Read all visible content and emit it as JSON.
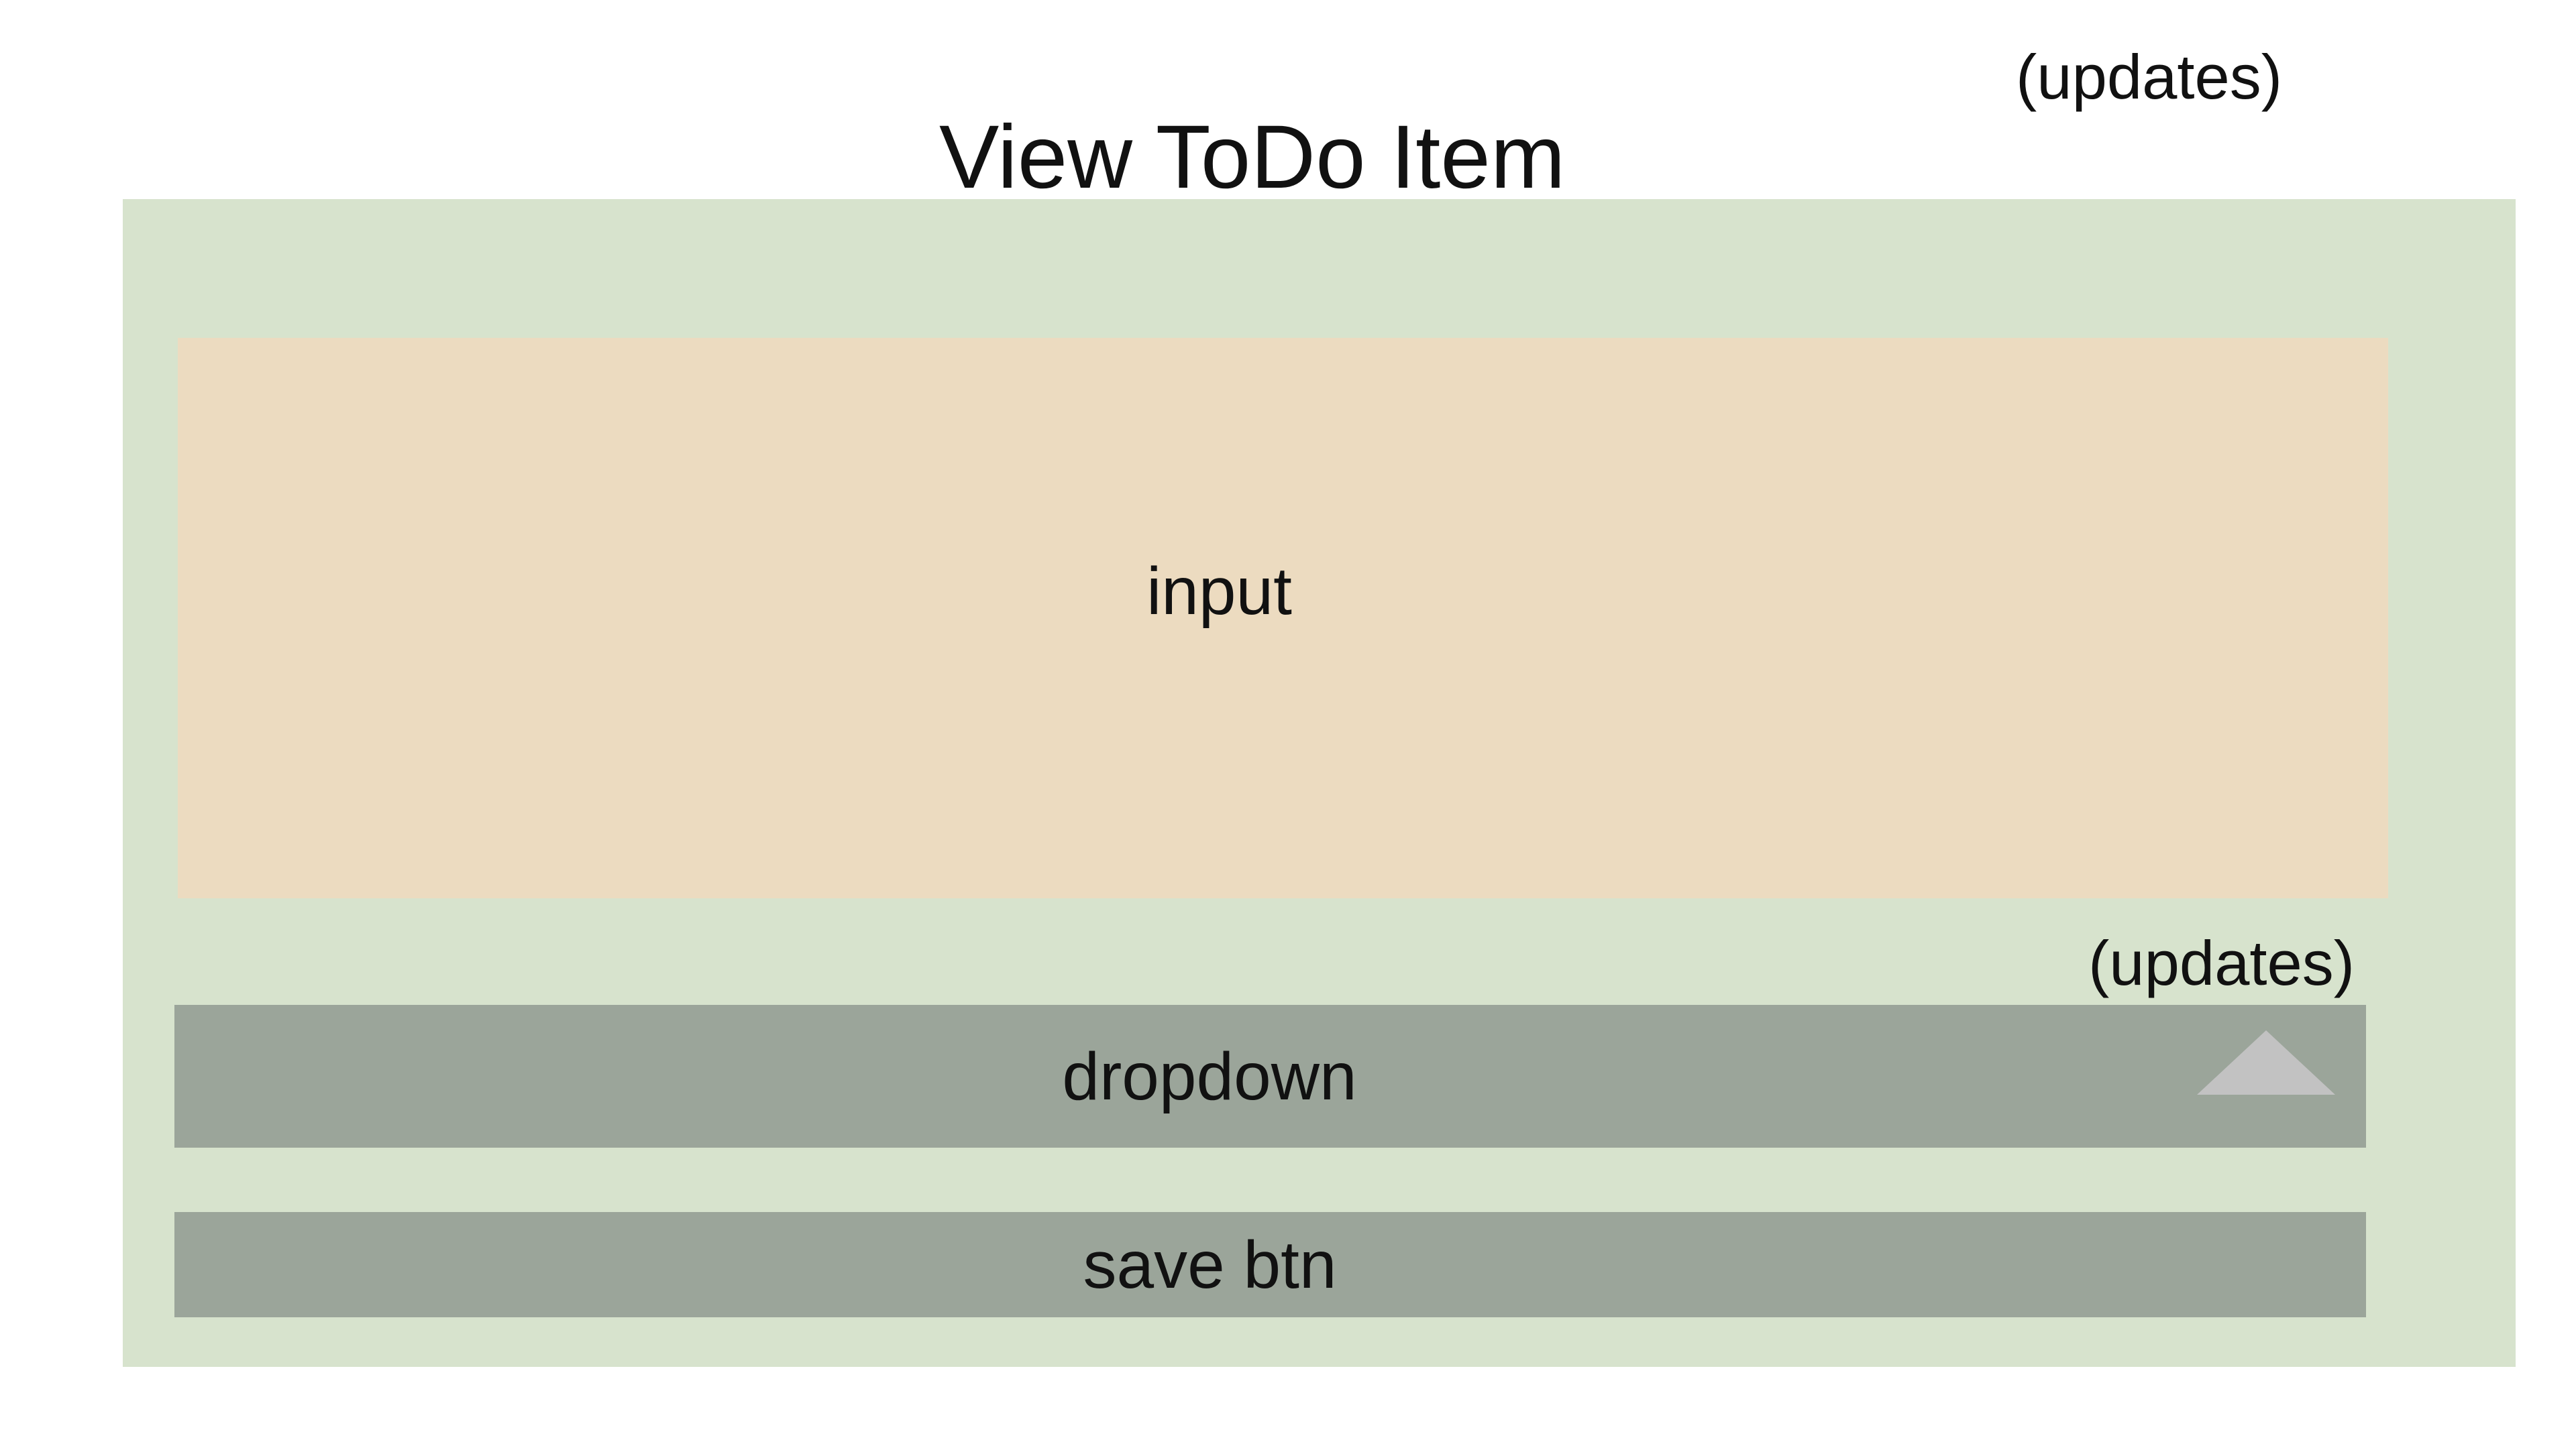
{
  "title": "View ToDo Item",
  "annotations": {
    "top": "(updates)",
    "dropdown": "(updates)"
  },
  "input": {
    "label": "input"
  },
  "dropdown": {
    "label": "dropdown",
    "caret_icon": "triangle-up-icon"
  },
  "save_button": {
    "label": "save btn"
  },
  "colors": {
    "panel": "#d7e3cd",
    "input": "#ecdbc0",
    "control": "#9ba59a",
    "caret": "#c2c2c2"
  }
}
